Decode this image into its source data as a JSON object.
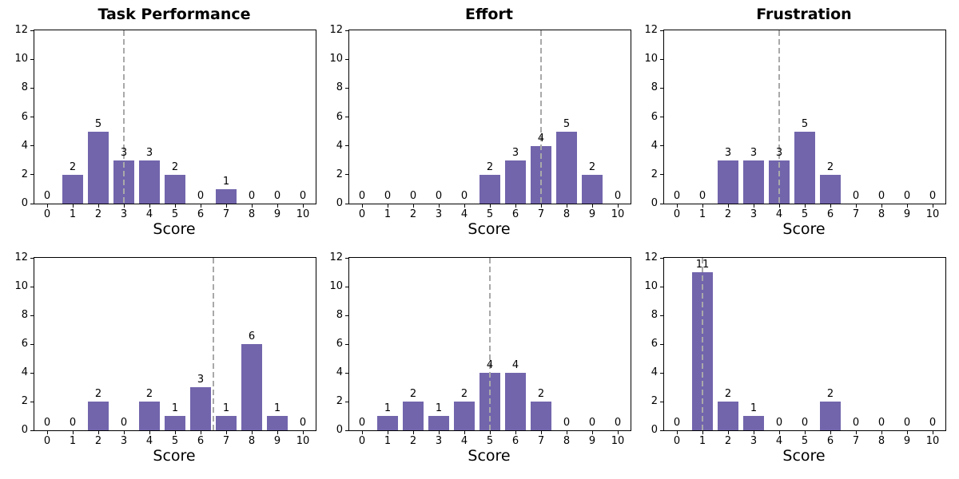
{
  "figure": {
    "background": "#ffffff",
    "bar_color": "#7265AC",
    "dash_color": "#A9A9A9",
    "axis_color": "#000000",
    "yticks": [
      0,
      2,
      4,
      6,
      8,
      10,
      12
    ]
  },
  "chart_data": [
    {
      "type": "bar",
      "title": "Task Performance",
      "xlabel": "Score",
      "categories": [
        "0",
        "1",
        "2",
        "3",
        "4",
        "5",
        "6",
        "7",
        "8",
        "9",
        "10"
      ],
      "values": [
        0,
        2,
        5,
        3,
        3,
        2,
        0,
        1,
        0,
        0,
        0
      ],
      "dashed_line_x": 3,
      "ylim": [
        0,
        12
      ],
      "grid": false,
      "legend": false
    },
    {
      "type": "bar",
      "title": "Effort",
      "xlabel": "Score",
      "categories": [
        "0",
        "1",
        "2",
        "3",
        "4",
        "5",
        "6",
        "7",
        "8",
        "9",
        "10"
      ],
      "values": [
        0,
        0,
        0,
        0,
        0,
        2,
        3,
        4,
        5,
        2,
        0
      ],
      "dashed_line_x": 7,
      "ylim": [
        0,
        12
      ],
      "grid": false,
      "legend": false
    },
    {
      "type": "bar",
      "title": "Frustration",
      "xlabel": "Score",
      "categories": [
        "0",
        "1",
        "2",
        "3",
        "4",
        "5",
        "6",
        "7",
        "8",
        "9",
        "10"
      ],
      "values": [
        0,
        0,
        3,
        3,
        3,
        5,
        2,
        0,
        0,
        0,
        0
      ],
      "dashed_line_x": 4,
      "ylim": [
        0,
        12
      ],
      "grid": false,
      "legend": false
    },
    {
      "type": "bar",
      "title": "",
      "xlabel": "Score",
      "categories": [
        "0",
        "1",
        "2",
        "3",
        "4",
        "5",
        "6",
        "7",
        "8",
        "9",
        "10"
      ],
      "values": [
        0,
        0,
        2,
        0,
        2,
        1,
        3,
        1,
        6,
        1,
        0
      ],
      "dashed_line_x": 6.5,
      "ylim": [
        0,
        12
      ],
      "grid": false,
      "legend": false
    },
    {
      "type": "bar",
      "title": "",
      "xlabel": "Score",
      "categories": [
        "0",
        "1",
        "2",
        "3",
        "4",
        "5",
        "6",
        "7",
        "8",
        "9",
        "10"
      ],
      "values": [
        0,
        1,
        2,
        1,
        2,
        4,
        4,
        2,
        0,
        0,
        0
      ],
      "dashed_line_x": 5,
      "ylim": [
        0,
        12
      ],
      "grid": false,
      "legend": false
    },
    {
      "type": "bar",
      "title": "",
      "xlabel": "Score",
      "categories": [
        "0",
        "1",
        "2",
        "3",
        "4",
        "5",
        "6",
        "7",
        "8",
        "9",
        "10"
      ],
      "values": [
        0,
        11,
        2,
        1,
        0,
        0,
        2,
        0,
        0,
        0,
        0
      ],
      "dashed_line_x": 1,
      "ylim": [
        0,
        12
      ],
      "grid": false,
      "legend": false
    }
  ]
}
